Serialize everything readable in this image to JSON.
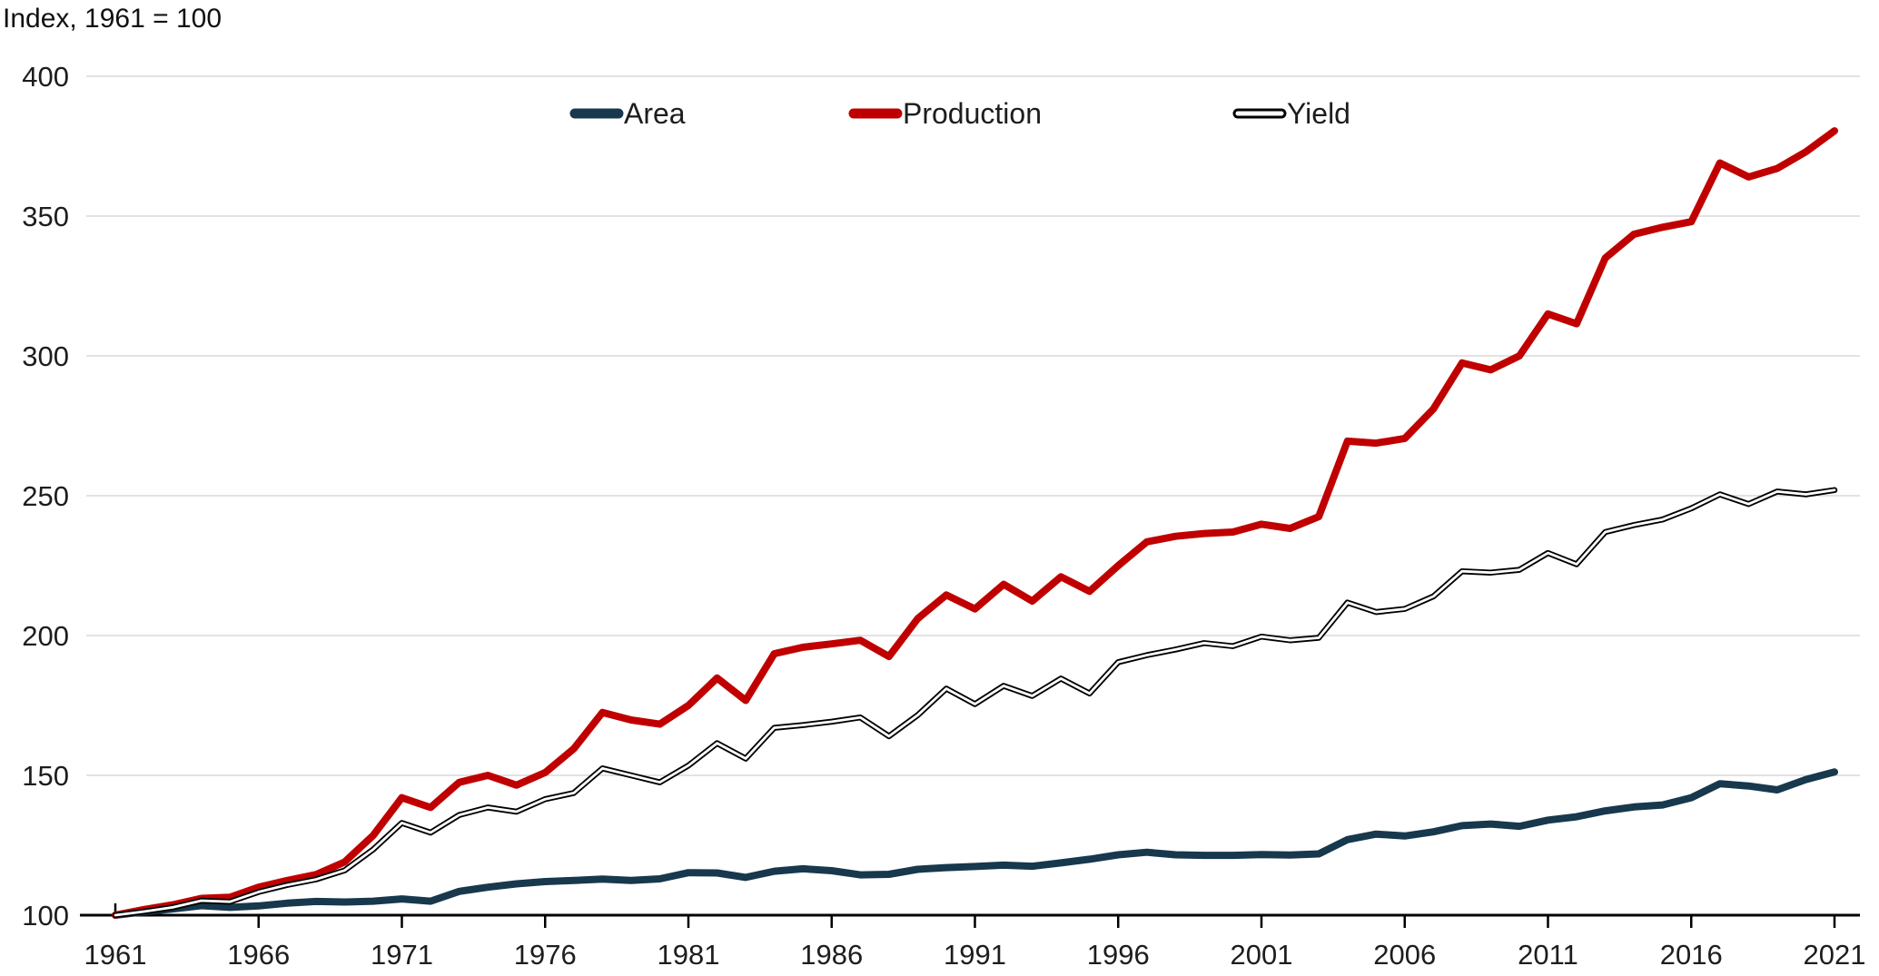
{
  "page": {
    "background": "#ffffff",
    "title": "Index, 1961 = 100"
  },
  "chart_data": {
    "type": "line",
    "title": "Index, 1961 = 100",
    "xlabel": "",
    "ylabel": "",
    "ylim": [
      100,
      400
    ],
    "xlim": [
      1961,
      2021
    ],
    "grid": "horizontal",
    "legend_position": "top-center",
    "axis_color": "#000000",
    "gridline_color": "#d9d9d9",
    "yticks": [
      400,
      350,
      300,
      250,
      200,
      150,
      100
    ],
    "xticks": [
      1961,
      1966,
      1971,
      1976,
      1981,
      1986,
      1991,
      1996,
      2001,
      2006,
      2011,
      2016,
      2021
    ],
    "x": [
      1961,
      1962,
      1963,
      1964,
      1965,
      1966,
      1967,
      1968,
      1969,
      1970,
      1971,
      1972,
      1973,
      1974,
      1975,
      1976,
      1977,
      1978,
      1979,
      1980,
      1981,
      1982,
      1983,
      1984,
      1985,
      1986,
      1987,
      1988,
      1989,
      1990,
      1991,
      1992,
      1993,
      1994,
      1995,
      1996,
      1997,
      1998,
      1999,
      2000,
      2001,
      2002,
      2003,
      2004,
      2005,
      2006,
      2007,
      2008,
      2009,
      2010,
      2011,
      2012,
      2013,
      2014,
      2015,
      2016,
      2017,
      2018,
      2019,
      2020,
      2021
    ],
    "series": [
      {
        "name": "Area",
        "color": "#17384d",
        "style": "solid",
        "values": [
          100,
          101.2,
          102.2,
          103.4,
          102.8,
          103.3,
          104.3,
          104.9,
          104.7,
          105.0,
          105.8,
          105.0,
          108.5,
          110.0,
          111.2,
          112.0,
          112.4,
          112.9,
          112.4,
          113.0,
          115.2,
          115.1,
          113.5,
          115.7,
          116.6,
          115.9,
          114.4,
          114.6,
          116.4,
          117.0,
          117.4,
          117.9,
          117.5,
          118.7,
          120.0,
          121.6,
          122.5,
          121.6,
          121.4,
          121.4,
          121.7,
          121.5,
          121.9,
          127.0,
          129.0,
          128.3,
          129.8,
          132.0,
          132.6,
          131.8,
          134.0,
          135.2,
          137.3,
          138.7,
          139.4,
          142.0,
          147.0,
          146.2,
          144.8,
          148.5,
          151.2
        ]
      },
      {
        "name": "Production",
        "color": "#c00000",
        "style": "solid",
        "values": [
          100,
          102,
          103.7,
          106,
          106.4,
          110,
          112.4,
          114.5,
          119,
          128.5,
          142,
          138.5,
          147.5,
          150,
          146.5,
          151,
          159.5,
          172.5,
          169.8,
          168.3,
          175,
          184.8,
          176.8,
          193.5,
          195.8,
          197,
          198.3,
          192.5,
          206,
          214.5,
          209.5,
          218.3,
          212.3,
          221,
          215.8,
          225,
          233.5,
          235.5,
          236.5,
          237,
          239.8,
          238.3,
          242.5,
          269.5,
          268.8,
          270.5,
          281,
          297.5,
          295,
          300,
          315,
          311.5,
          335,
          343.5,
          346,
          348,
          369,
          364,
          367,
          373,
          380.5
        ]
      },
      {
        "name": "Yield",
        "color": "#000000",
        "style": "double-outline-white",
        "values": [
          100,
          101.3,
          102.8,
          105.2,
          104.8,
          108.3,
          110.8,
          112.8,
          116,
          123.5,
          133,
          129.5,
          135.8,
          138.5,
          137,
          141.5,
          143.7,
          152.5,
          150,
          147.5,
          153.5,
          161.5,
          156,
          167,
          168,
          169.2,
          170.7,
          164,
          171.5,
          181,
          175.5,
          182,
          178.4,
          184.6,
          179.3,
          190.5,
          193,
          195,
          197.3,
          196.2,
          199.6,
          198.3,
          199.2,
          211.8,
          208.4,
          209.5,
          214,
          223,
          222.5,
          223.5,
          229.5,
          225.5,
          237,
          239.5,
          241.5,
          245.5,
          250.5,
          247,
          251.5,
          250.5,
          252
        ]
      }
    ]
  }
}
